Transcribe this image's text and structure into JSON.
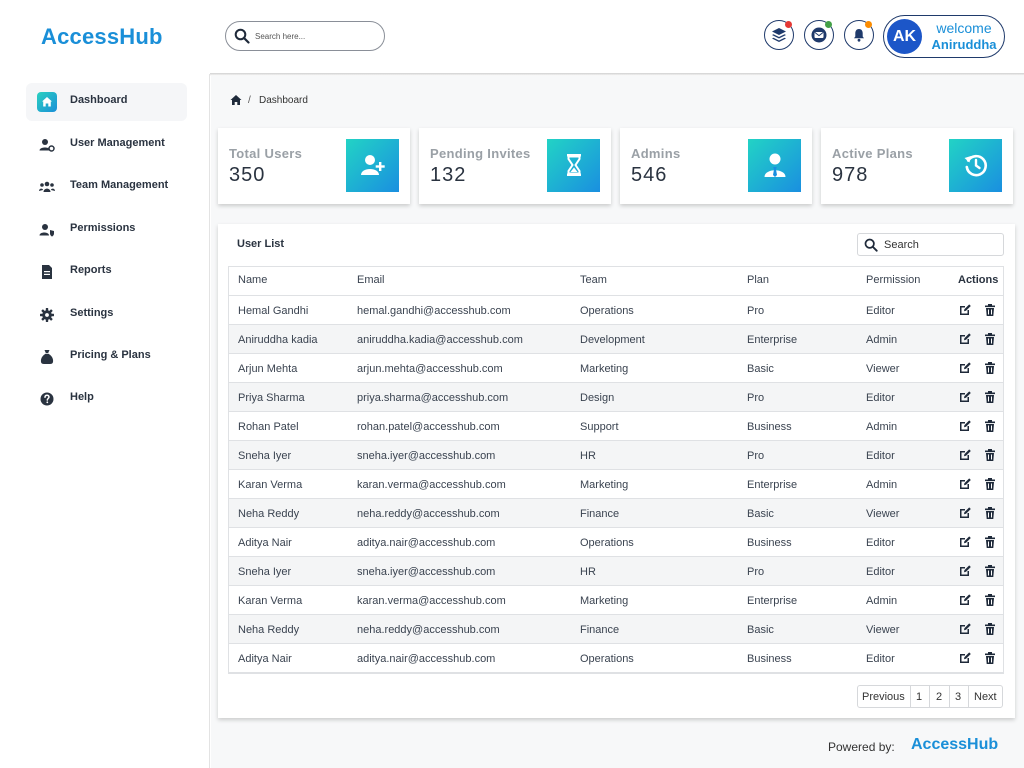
{
  "header": {
    "logo": "AccessHub",
    "search_placeholder": "Search here...",
    "icons": [
      "layers-icon",
      "mail-icon",
      "bell-icon"
    ],
    "notification_colors": [
      "#e53935",
      "#43a047",
      "#fb8c00"
    ],
    "user": {
      "initials": "AK",
      "greeting": "welcome",
      "name": "Aniruddha"
    }
  },
  "sidebar": {
    "items": [
      {
        "label": "Dashboard",
        "icon": "home-icon",
        "active": true
      },
      {
        "label": "User Management",
        "icon": "user-cog-icon"
      },
      {
        "label": "Team Management",
        "icon": "team-icon"
      },
      {
        "label": "Permissions",
        "icon": "user-shield-icon"
      },
      {
        "label": "Reports",
        "icon": "document-icon"
      },
      {
        "label": "Settings",
        "icon": "gear-icon"
      },
      {
        "label": "Pricing & Plans",
        "icon": "money-bag-icon"
      },
      {
        "label": "Help",
        "icon": "question-icon"
      }
    ]
  },
  "breadcrumb": {
    "separator": "/",
    "current": "Dashboard"
  },
  "stats": [
    {
      "title": "Total Users",
      "value": "350",
      "icon": "user-plus-icon"
    },
    {
      "title": "Pending Invites",
      "value": "132",
      "icon": "hourglass-icon"
    },
    {
      "title": "Admins",
      "value": "546",
      "icon": "admin-user-icon"
    },
    {
      "title": "Active Plans",
      "value": "978",
      "icon": "history-icon"
    }
  ],
  "user_list": {
    "title": "User List",
    "search_placeholder": "Search",
    "columns": [
      "Name",
      "Email",
      "Team",
      "Plan",
      "Permission",
      "Actions"
    ],
    "rows": [
      [
        "Hemal Gandhi",
        "hemal.gandhi@accesshub.com",
        "Operations",
        "Pro",
        "Editor"
      ],
      [
        "Aniruddha kadia",
        "aniruddha.kadia@accesshub.com",
        "Development",
        "Enterprise",
        "Admin"
      ],
      [
        "Arjun Mehta",
        "arjun.mehta@accesshub.com",
        "Marketing",
        "Basic",
        "Viewer"
      ],
      [
        "Priya Sharma",
        "priya.sharma@accesshub.com",
        "Design",
        "Pro",
        "Editor"
      ],
      [
        "Rohan Patel",
        "rohan.patel@accesshub.com",
        "Support",
        "Business",
        "Admin"
      ],
      [
        "Sneha Iyer",
        "sneha.iyer@accesshub.com",
        "HR",
        "Pro",
        "Editor"
      ],
      [
        "Karan Verma",
        "karan.verma@accesshub.com",
        "Marketing",
        "Enterprise",
        "Admin"
      ],
      [
        "Neha Reddy",
        "neha.reddy@accesshub.com",
        "Finance",
        "Basic",
        "Viewer"
      ],
      [
        "Aditya Nair",
        "aditya.nair@accesshub.com",
        "Operations",
        "Business",
        "Editor"
      ],
      [
        "Sneha Iyer",
        "sneha.iyer@accesshub.com",
        "HR",
        "Pro",
        "Editor"
      ],
      [
        "Karan Verma",
        "karan.verma@accesshub.com",
        "Marketing",
        "Enterprise",
        "Admin"
      ],
      [
        "Neha Reddy",
        "neha.reddy@accesshub.com",
        "Finance",
        "Basic",
        "Viewer"
      ],
      [
        "Aditya Nair",
        "aditya.nair@accesshub.com",
        "Operations",
        "Business",
        "Editor"
      ]
    ],
    "row_actions": [
      "edit-icon",
      "trash-icon"
    ],
    "pagination": {
      "previous": "Previous",
      "pages": [
        "1",
        "2",
        "3"
      ],
      "next": "Next"
    }
  },
  "footer": {
    "powered_by": "Powered by:",
    "brand": "AccessHub"
  },
  "colors": {
    "brand": "#1a8fd8",
    "gradient_start": "#22d3c5",
    "gradient_end": "#1a8fe0",
    "navy": "#1f3a6b"
  }
}
